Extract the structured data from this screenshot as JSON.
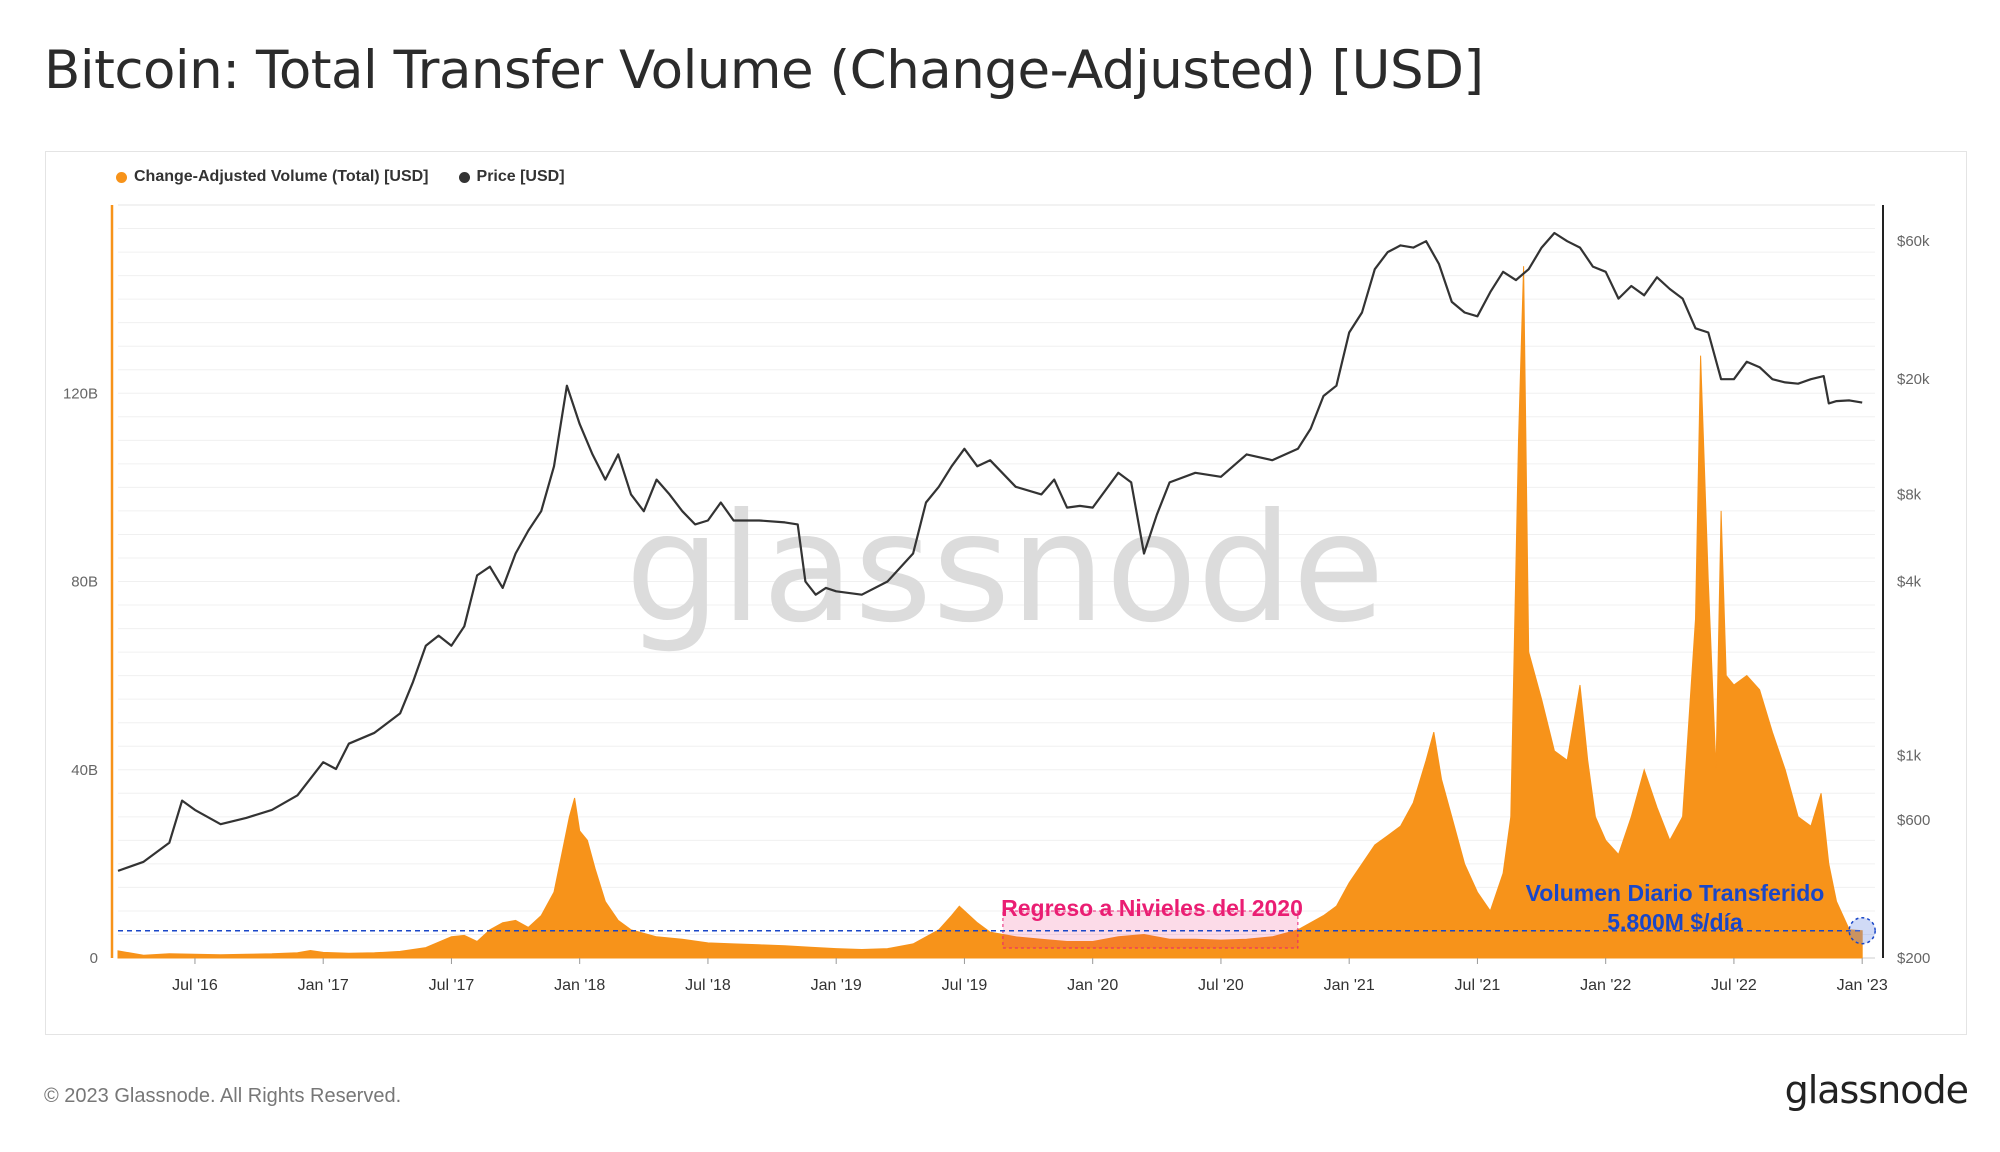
{
  "title": "Bitcoin: Total Transfer Volume (Change-Adjusted) [USD]",
  "footer": {
    "copyright": "© 2023 Glassnode. All Rights Reserved.",
    "logo": "glassnode"
  },
  "watermark": "glassnode",
  "colors": {
    "volume": "#f7931a",
    "price": "#333333",
    "annotation_pink": "#ea1e73",
    "annotation_blue": "#1a47c8",
    "axis_left": "#f7931a",
    "axis_right": "#222222"
  },
  "chart_data": {
    "type": "area",
    "title": "Bitcoin: Total Transfer Volume (Change-Adjusted) [USD]",
    "x_tick_labels": [
      "Jul '16",
      "Jan '17",
      "Jul '17",
      "Jan '18",
      "Jul '18",
      "Jan '19",
      "Jul '19",
      "Jan '20",
      "Jul '20",
      "Jan '21",
      "Jul '21",
      "Jan '22",
      "Jul '22",
      "Jan '23"
    ],
    "x_tick_dates": [
      2016.5,
      2017.0,
      2017.5,
      2018.0,
      2018.5,
      2019.0,
      2019.5,
      2020.0,
      2020.5,
      2021.0,
      2021.5,
      2022.0,
      2022.5,
      2023.0
    ],
    "xlim": [
      2016.2,
      2023.05
    ],
    "y_left": {
      "label": "",
      "tick_labels": [
        "0",
        "40B",
        "80B",
        "120B"
      ],
      "tick_values": [
        0,
        40,
        80,
        120
      ],
      "ylim": [
        0,
        160
      ],
      "unit": "B USD"
    },
    "y_right": {
      "label": "",
      "scale": "log",
      "tick_labels": [
        "$200",
        "$600",
        "$1k",
        "$4k",
        "$8k",
        "$20k",
        "$60k"
      ],
      "tick_values": [
        200,
        600,
        1000,
        4000,
        8000,
        20000,
        60000
      ],
      "ylim": [
        200,
        80000
      ]
    },
    "legend_position": "top-left",
    "series": [
      {
        "name": "Change-Adjusted Volume (Total) [USD]",
        "axis": "left",
        "type": "area",
        "unit": "B USD",
        "points": [
          [
            2016.2,
            1.5
          ],
          [
            2016.3,
            0.6
          ],
          [
            2016.4,
            0.9
          ],
          [
            2016.5,
            0.8
          ],
          [
            2016.6,
            0.7
          ],
          [
            2016.7,
            0.8
          ],
          [
            2016.8,
            0.9
          ],
          [
            2016.9,
            1.1
          ],
          [
            2016.95,
            1.6
          ],
          [
            2017.0,
            1.2
          ],
          [
            2017.1,
            1.0
          ],
          [
            2017.2,
            1.1
          ],
          [
            2017.3,
            1.4
          ],
          [
            2017.4,
            2.2
          ],
          [
            2017.5,
            4.5
          ],
          [
            2017.55,
            4.8
          ],
          [
            2017.6,
            3.5
          ],
          [
            2017.65,
            6.0
          ],
          [
            2017.7,
            7.5
          ],
          [
            2017.75,
            8.0
          ],
          [
            2017.8,
            6.5
          ],
          [
            2017.85,
            9.0
          ],
          [
            2017.9,
            14.0
          ],
          [
            2017.93,
            22.0
          ],
          [
            2017.96,
            30.0
          ],
          [
            2017.98,
            34.0
          ],
          [
            2018.0,
            27.0
          ],
          [
            2018.03,
            25.0
          ],
          [
            2018.06,
            19.0
          ],
          [
            2018.1,
            12.0
          ],
          [
            2018.15,
            8.0
          ],
          [
            2018.2,
            6.0
          ],
          [
            2018.3,
            4.5
          ],
          [
            2018.4,
            4.0
          ],
          [
            2018.5,
            3.2
          ],
          [
            2018.6,
            3.0
          ],
          [
            2018.7,
            2.8
          ],
          [
            2018.8,
            2.6
          ],
          [
            2018.9,
            2.3
          ],
          [
            2019.0,
            2.0
          ],
          [
            2019.1,
            1.8
          ],
          [
            2019.2,
            2.0
          ],
          [
            2019.3,
            3.0
          ],
          [
            2019.4,
            6.0
          ],
          [
            2019.45,
            9.0
          ],
          [
            2019.48,
            11.0
          ],
          [
            2019.5,
            10.0
          ],
          [
            2019.55,
            7.5
          ],
          [
            2019.6,
            5.5
          ],
          [
            2019.7,
            4.5
          ],
          [
            2019.8,
            4.0
          ],
          [
            2019.9,
            3.5
          ],
          [
            2020.0,
            3.5
          ],
          [
            2020.1,
            4.5
          ],
          [
            2020.2,
            5.0
          ],
          [
            2020.3,
            4.0
          ],
          [
            2020.4,
            4.0
          ],
          [
            2020.5,
            3.8
          ],
          [
            2020.6,
            4.0
          ],
          [
            2020.7,
            4.5
          ],
          [
            2020.8,
            6.0
          ],
          [
            2020.9,
            9.0
          ],
          [
            2020.95,
            11.0
          ],
          [
            2021.0,
            16.0
          ],
          [
            2021.05,
            20.0
          ],
          [
            2021.1,
            24.0
          ],
          [
            2021.15,
            26.0
          ],
          [
            2021.2,
            28.0
          ],
          [
            2021.25,
            33.0
          ],
          [
            2021.3,
            42.0
          ],
          [
            2021.33,
            48.0
          ],
          [
            2021.36,
            38.0
          ],
          [
            2021.4,
            30.0
          ],
          [
            2021.45,
            20.0
          ],
          [
            2021.5,
            14.0
          ],
          [
            2021.55,
            10.0
          ],
          [
            2021.6,
            18.0
          ],
          [
            2021.63,
            30.0
          ],
          [
            2021.66,
            110.0
          ],
          [
            2021.68,
            147.0
          ],
          [
            2021.7,
            65.0
          ],
          [
            2021.75,
            55.0
          ],
          [
            2021.8,
            44.0
          ],
          [
            2021.85,
            42.0
          ],
          [
            2021.9,
            58.0
          ],
          [
            2021.93,
            42.0
          ],
          [
            2021.96,
            30.0
          ],
          [
            2022.0,
            25.0
          ],
          [
            2022.05,
            22.0
          ],
          [
            2022.1,
            30.0
          ],
          [
            2022.15,
            40.0
          ],
          [
            2022.2,
            32.0
          ],
          [
            2022.25,
            25.0
          ],
          [
            2022.3,
            30.0
          ],
          [
            2022.35,
            72.0
          ],
          [
            2022.37,
            128.0
          ],
          [
            2022.4,
            80.0
          ],
          [
            2022.43,
            40.0
          ],
          [
            2022.45,
            95.0
          ],
          [
            2022.47,
            60.0
          ],
          [
            2022.5,
            58.0
          ],
          [
            2022.55,
            60.0
          ],
          [
            2022.6,
            57.0
          ],
          [
            2022.65,
            48.0
          ],
          [
            2022.7,
            40.0
          ],
          [
            2022.75,
            30.0
          ],
          [
            2022.8,
            28.0
          ],
          [
            2022.84,
            35.0
          ],
          [
            2022.87,
            20.0
          ],
          [
            2022.9,
            12.0
          ],
          [
            2022.95,
            6.0
          ],
          [
            2023.0,
            5.8
          ]
        ]
      },
      {
        "name": "Price [USD]",
        "axis": "right",
        "type": "line",
        "unit": "USD",
        "points": [
          [
            2016.2,
            400
          ],
          [
            2016.3,
            430
          ],
          [
            2016.4,
            500
          ],
          [
            2016.45,
            700
          ],
          [
            2016.5,
            650
          ],
          [
            2016.6,
            580
          ],
          [
            2016.7,
            610
          ],
          [
            2016.8,
            650
          ],
          [
            2016.9,
            730
          ],
          [
            2017.0,
            950
          ],
          [
            2017.05,
            900
          ],
          [
            2017.1,
            1100
          ],
          [
            2017.2,
            1200
          ],
          [
            2017.3,
            1400
          ],
          [
            2017.35,
            1800
          ],
          [
            2017.4,
            2400
          ],
          [
            2017.45,
            2600
          ],
          [
            2017.5,
            2400
          ],
          [
            2017.55,
            2800
          ],
          [
            2017.6,
            4200
          ],
          [
            2017.65,
            4500
          ],
          [
            2017.7,
            3800
          ],
          [
            2017.75,
            5000
          ],
          [
            2017.8,
            6000
          ],
          [
            2017.85,
            7000
          ],
          [
            2017.9,
            10000
          ],
          [
            2017.95,
            19000
          ],
          [
            2018.0,
            14000
          ],
          [
            2018.05,
            11000
          ],
          [
            2018.1,
            9000
          ],
          [
            2018.15,
            11000
          ],
          [
            2018.2,
            8000
          ],
          [
            2018.25,
            7000
          ],
          [
            2018.3,
            9000
          ],
          [
            2018.35,
            8000
          ],
          [
            2018.4,
            7000
          ],
          [
            2018.45,
            6300
          ],
          [
            2018.5,
            6500
          ],
          [
            2018.55,
            7500
          ],
          [
            2018.6,
            6500
          ],
          [
            2018.7,
            6500
          ],
          [
            2018.8,
            6400
          ],
          [
            2018.85,
            6300
          ],
          [
            2018.88,
            4000
          ],
          [
            2018.92,
            3600
          ],
          [
            2018.96,
            3800
          ],
          [
            2019.0,
            3700
          ],
          [
            2019.1,
            3600
          ],
          [
            2019.2,
            4000
          ],
          [
            2019.3,
            5000
          ],
          [
            2019.35,
            7500
          ],
          [
            2019.4,
            8500
          ],
          [
            2019.45,
            10000
          ],
          [
            2019.5,
            11500
          ],
          [
            2019.55,
            10000
          ],
          [
            2019.6,
            10500
          ],
          [
            2019.7,
            8500
          ],
          [
            2019.8,
            8000
          ],
          [
            2019.85,
            9000
          ],
          [
            2019.9,
            7200
          ],
          [
            2019.95,
            7300
          ],
          [
            2020.0,
            7200
          ],
          [
            2020.1,
            9500
          ],
          [
            2020.15,
            8800
          ],
          [
            2020.2,
            5000
          ],
          [
            2020.25,
            6800
          ],
          [
            2020.3,
            8800
          ],
          [
            2020.4,
            9500
          ],
          [
            2020.5,
            9200
          ],
          [
            2020.6,
            11000
          ],
          [
            2020.7,
            10500
          ],
          [
            2020.8,
            11500
          ],
          [
            2020.85,
            13500
          ],
          [
            2020.9,
            17500
          ],
          [
            2020.95,
            19000
          ],
          [
            2021.0,
            29000
          ],
          [
            2021.05,
            34000
          ],
          [
            2021.1,
            48000
          ],
          [
            2021.15,
            55000
          ],
          [
            2021.2,
            58000
          ],
          [
            2021.25,
            57000
          ],
          [
            2021.3,
            60000
          ],
          [
            2021.35,
            50000
          ],
          [
            2021.4,
            37000
          ],
          [
            2021.45,
            34000
          ],
          [
            2021.5,
            33000
          ],
          [
            2021.55,
            40000
          ],
          [
            2021.6,
            47000
          ],
          [
            2021.65,
            44000
          ],
          [
            2021.7,
            48000
          ],
          [
            2021.75,
            57000
          ],
          [
            2021.8,
            64000
          ],
          [
            2021.85,
            60000
          ],
          [
            2021.9,
            57000
          ],
          [
            2021.95,
            49000
          ],
          [
            2022.0,
            47000
          ],
          [
            2022.05,
            38000
          ],
          [
            2022.1,
            42000
          ],
          [
            2022.15,
            39000
          ],
          [
            2022.2,
            45000
          ],
          [
            2022.25,
            41000
          ],
          [
            2022.3,
            38000
          ],
          [
            2022.35,
            30000
          ],
          [
            2022.4,
            29000
          ],
          [
            2022.45,
            20000
          ],
          [
            2022.5,
            20000
          ],
          [
            2022.55,
            23000
          ],
          [
            2022.6,
            22000
          ],
          [
            2022.65,
            20000
          ],
          [
            2022.7,
            19500
          ],
          [
            2022.75,
            19300
          ],
          [
            2022.8,
            20000
          ],
          [
            2022.85,
            20500
          ],
          [
            2022.87,
            16500
          ],
          [
            2022.9,
            16800
          ],
          [
            2022.95,
            16900
          ],
          [
            2023.0,
            16600
          ]
        ]
      }
    ],
    "annotations": [
      {
        "text": "Regreso a Nivieles del 2020",
        "color": "#ea1e73"
      },
      {
        "text": "Volumen Diario Transferido",
        "color": "#1a47c8"
      },
      {
        "text": "5.800M $/día",
        "color": "#1a47c8"
      }
    ],
    "reference_line": {
      "value": 5.8,
      "axis": "left",
      "style": "dashed"
    },
    "highlight_range": {
      "x": [
        2019.65,
        2020.8
      ],
      "y": [
        0,
        10
      ]
    }
  }
}
